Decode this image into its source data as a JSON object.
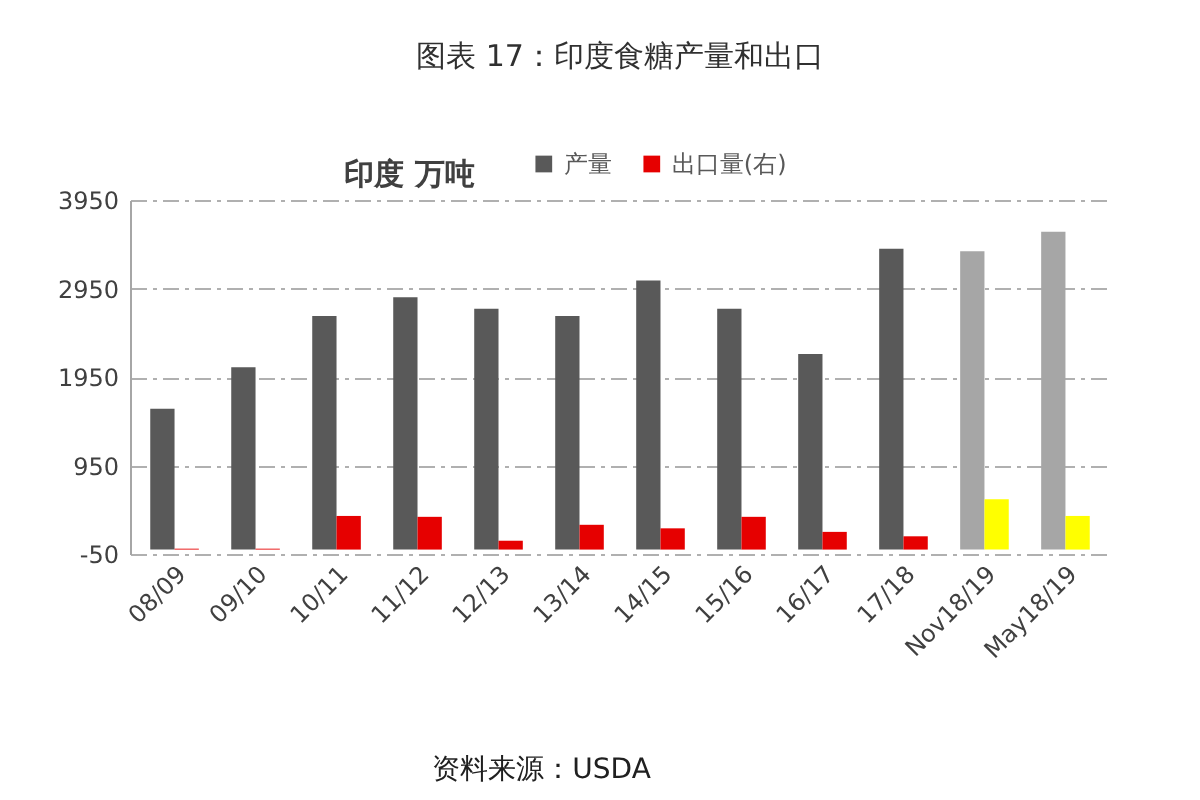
{
  "chart_data": {
    "type": "bar",
    "title": "图表 17：印度食糖产量和出口",
    "subtitle": "印度 万吨",
    "categories": [
      "08/09",
      "09/10",
      "10/11",
      "11/12",
      "12/13",
      "13/14",
      "14/15",
      "15/16",
      "16/17",
      "17/18",
      "Nov18/19",
      "May18/19"
    ],
    "series": [
      {
        "name": "产量",
        "color": "#595959",
        "colors": [
          "#595959",
          "#595959",
          "#595959",
          "#595959",
          "#595959",
          "#595959",
          "#595959",
          "#595959",
          "#595959",
          "#595959",
          "#a6a6a6",
          "#a6a6a6"
        ],
        "values": [
          1590,
          2060,
          2640,
          2850,
          2720,
          2640,
          3040,
          2720,
          2210,
          3400,
          3370,
          3590
        ]
      },
      {
        "name": "出口量(右)",
        "color": "#e60000",
        "colors": [
          "#e60000",
          "#e60000",
          "#e60000",
          "#e60000",
          "#e60000",
          "#e60000",
          "#e60000",
          "#e60000",
          "#e60000",
          "#e60000",
          "#ffff00",
          "#ffff00"
        ],
        "values": [
          10,
          10,
          380,
          370,
          100,
          280,
          240,
          370,
          200,
          150,
          570,
          380
        ]
      }
    ],
    "ylim": [
      -50,
      3950
    ],
    "yticks": [
      -50,
      950,
      1950,
      2950,
      3950
    ],
    "grid": "y",
    "legend": "top",
    "annotations": [
      "资料来源：USDA"
    ]
  }
}
